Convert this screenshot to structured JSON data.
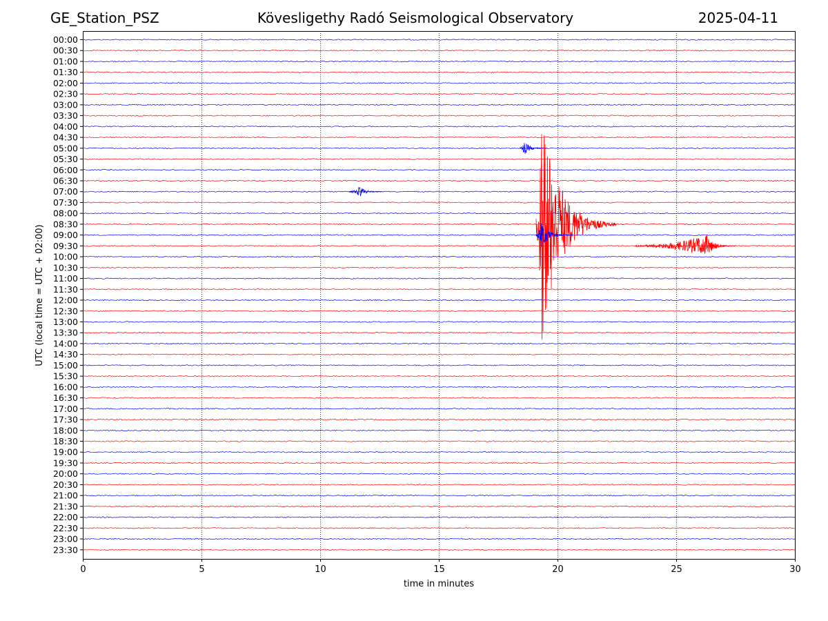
{
  "header": {
    "station": "GE_Station_PSZ",
    "observatory": "Kövesligethy Radó Seismological Observatory",
    "date": "2025-04-11"
  },
  "chart_data": {
    "type": "line",
    "title": "Kövesligethy Radó Seismological Observatory",
    "xlabel": "time in minutes",
    "ylabel": "UTC (local time = UTC + 02:00)",
    "xlim": [
      0,
      30
    ],
    "xticks": [
      "0",
      "5",
      "10",
      "15",
      "20",
      "25",
      "30"
    ],
    "grid": "vertical dotted lines at x = 5, 10, 15, 20, 25",
    "row_labels": [
      "00:00",
      "00:30",
      "01:00",
      "01:30",
      "02:00",
      "02:30",
      "03:00",
      "03:30",
      "04:00",
      "04:30",
      "05:00",
      "05:30",
      "06:00",
      "06:30",
      "07:00",
      "07:30",
      "08:00",
      "08:30",
      "09:00",
      "09:30",
      "10:00",
      "10:30",
      "11:00",
      "11:30",
      "12:00",
      "12:30",
      "13:00",
      "13:30",
      "14:00",
      "14:30",
      "15:00",
      "15:30",
      "16:00",
      "16:30",
      "17:00",
      "17:30",
      "18:00",
      "18:30",
      "19:00",
      "19:30",
      "20:00",
      "20:30",
      "21:00",
      "21:30",
      "22:00",
      "22:30",
      "23:00",
      "23:30"
    ],
    "row_colors": [
      "#0000ff",
      "#ff0000"
    ],
    "events": [
      {
        "row": "05:00",
        "start_min": 18.4,
        "peak_min": 18.6,
        "end_min": 19.6,
        "amplitude": 0.6,
        "color": "#0000ff"
      },
      {
        "row": "07:00",
        "start_min": 11.2,
        "peak_min": 11.7,
        "end_min": 12.6,
        "amplitude": 0.5,
        "color": "#0000ff"
      },
      {
        "row": "08:30",
        "start_min": 19.1,
        "peak_min": 19.3,
        "end_min": 22.5,
        "amplitude": 11.5,
        "color": "#ff0000"
      },
      {
        "row": "09:00",
        "start_min": 19.1,
        "peak_min": 19.3,
        "end_min": 20.6,
        "amplitude": 1.3,
        "color": "#0000ff"
      },
      {
        "row": "09:30",
        "start_min": 23.3,
        "peak_min": 26.3,
        "end_min": 27.5,
        "amplitude": 1.0,
        "color": "#ff0000"
      }
    ]
  }
}
